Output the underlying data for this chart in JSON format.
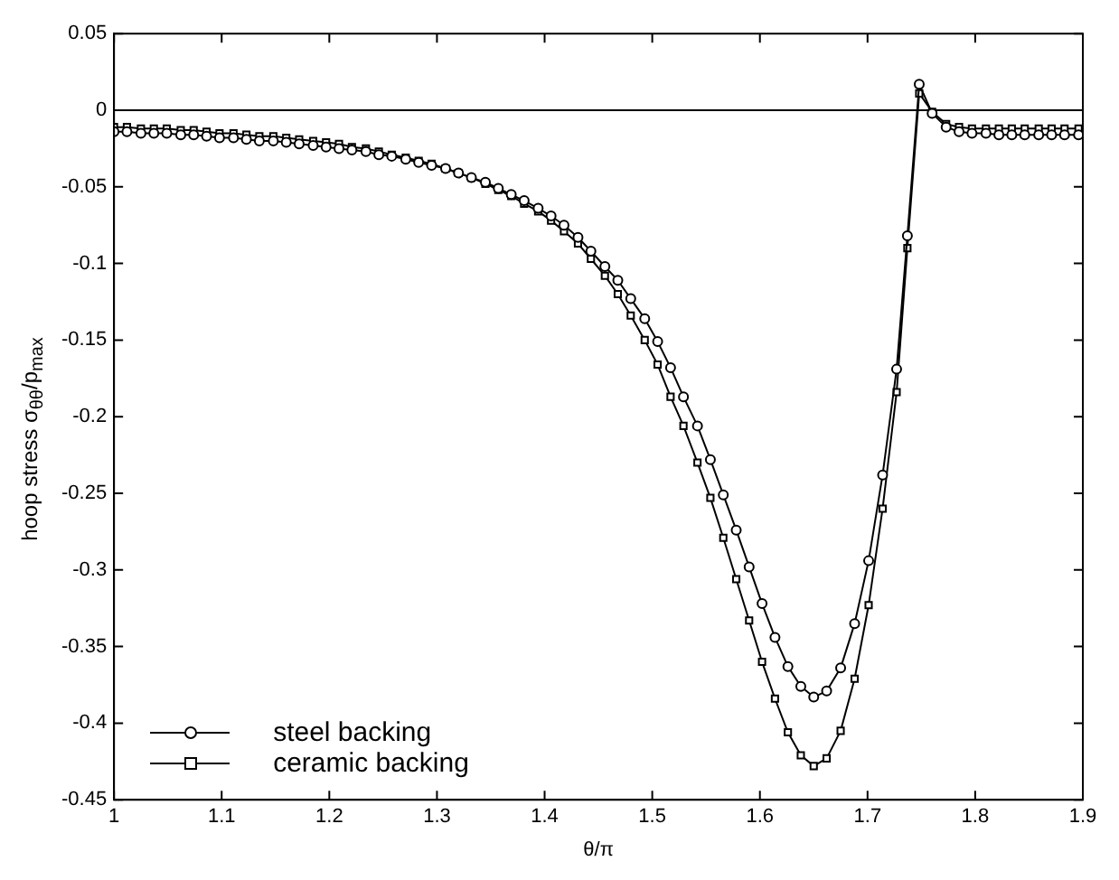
{
  "chart_data": {
    "type": "line",
    "xlabel": "θ/π",
    "ylabel": "hoop stress σ$_{θθ}$/p$_{max}$",
    "xlim": [
      1,
      1.9
    ],
    "xticks": [
      1,
      1.1,
      1.2,
      1.3,
      1.4,
      1.5,
      1.6,
      1.7,
      1.8,
      1.9
    ],
    "ylim": [
      -0.45,
      0.05
    ],
    "yticks": [
      -0.45,
      -0.4,
      -0.35,
      -0.3,
      -0.25,
      -0.2,
      -0.15,
      -0.1,
      -0.05,
      0,
      0.05
    ],
    "grid": false,
    "legend": "bottom left",
    "line_style": "solid",
    "ref_lines": [
      {
        "axis": "y",
        "value": 0,
        "color": "#000000"
      }
    ],
    "series": [
      {
        "name": "steel backing",
        "color": "#000000",
        "marker": "circle",
        "x": [
          1.0,
          1.012,
          1.025,
          1.037,
          1.049,
          1.062,
          1.074,
          1.086,
          1.098,
          1.111,
          1.123,
          1.135,
          1.148,
          1.16,
          1.172,
          1.185,
          1.197,
          1.209,
          1.221,
          1.234,
          1.246,
          1.258,
          1.271,
          1.283,
          1.295,
          1.308,
          1.32,
          1.332,
          1.345,
          1.357,
          1.369,
          1.381,
          1.394,
          1.406,
          1.418,
          1.431,
          1.443,
          1.456,
          1.468,
          1.48,
          1.493,
          1.505,
          1.517,
          1.529,
          1.542,
          1.554,
          1.566,
          1.578,
          1.59,
          1.602,
          1.614,
          1.626,
          1.638,
          1.65,
          1.662,
          1.675,
          1.688,
          1.701,
          1.714,
          1.727,
          1.737,
          1.748,
          1.76,
          1.773,
          1.785,
          1.797,
          1.81,
          1.822,
          1.834,
          1.846,
          1.859,
          1.871,
          1.883,
          1.896
        ],
        "values": [
          -0.014,
          -0.014,
          -0.015,
          -0.015,
          -0.015,
          -0.016,
          -0.016,
          -0.017,
          -0.018,
          -0.018,
          -0.019,
          -0.02,
          -0.02,
          -0.021,
          -0.022,
          -0.023,
          -0.024,
          -0.025,
          -0.026,
          -0.027,
          -0.029,
          -0.03,
          -0.032,
          -0.034,
          -0.036,
          -0.038,
          -0.041,
          -0.044,
          -0.047,
          -0.051,
          -0.055,
          -0.059,
          -0.064,
          -0.069,
          -0.075,
          -0.083,
          -0.092,
          -0.102,
          -0.111,
          -0.123,
          -0.136,
          -0.151,
          -0.168,
          -0.187,
          -0.206,
          -0.228,
          -0.251,
          -0.274,
          -0.298,
          -0.322,
          -0.344,
          -0.363,
          -0.376,
          -0.383,
          -0.379,
          -0.364,
          -0.335,
          -0.294,
          -0.238,
          -0.169,
          -0.082,
          0.017,
          -0.002,
          -0.011,
          -0.014,
          -0.015,
          -0.015,
          -0.016,
          -0.016,
          -0.016,
          -0.016,
          -0.016,
          -0.016,
          -0.016
        ]
      },
      {
        "name": "ceramic backing",
        "color": "#000000",
        "marker": "square",
        "x": [
          1.0,
          1.012,
          1.025,
          1.037,
          1.049,
          1.062,
          1.074,
          1.086,
          1.098,
          1.111,
          1.123,
          1.135,
          1.148,
          1.16,
          1.172,
          1.185,
          1.197,
          1.209,
          1.221,
          1.234,
          1.246,
          1.258,
          1.271,
          1.283,
          1.295,
          1.308,
          1.32,
          1.332,
          1.345,
          1.357,
          1.369,
          1.381,
          1.394,
          1.406,
          1.418,
          1.431,
          1.443,
          1.456,
          1.468,
          1.48,
          1.493,
          1.505,
          1.517,
          1.529,
          1.542,
          1.554,
          1.566,
          1.578,
          1.59,
          1.602,
          1.614,
          1.626,
          1.638,
          1.65,
          1.662,
          1.675,
          1.688,
          1.701,
          1.714,
          1.727,
          1.737,
          1.748,
          1.76,
          1.773,
          1.785,
          1.797,
          1.81,
          1.822,
          1.834,
          1.846,
          1.859,
          1.871,
          1.883,
          1.896
        ],
        "values": [
          -0.011,
          -0.011,
          -0.012,
          -0.012,
          -0.012,
          -0.013,
          -0.013,
          -0.014,
          -0.015,
          -0.015,
          -0.016,
          -0.017,
          -0.017,
          -0.018,
          -0.019,
          -0.02,
          -0.021,
          -0.022,
          -0.024,
          -0.025,
          -0.027,
          -0.029,
          -0.031,
          -0.033,
          -0.035,
          -0.038,
          -0.041,
          -0.044,
          -0.048,
          -0.052,
          -0.056,
          -0.061,
          -0.066,
          -0.072,
          -0.079,
          -0.087,
          -0.097,
          -0.108,
          -0.12,
          -0.134,
          -0.15,
          -0.166,
          -0.187,
          -0.206,
          -0.23,
          -0.253,
          -0.279,
          -0.306,
          -0.333,
          -0.36,
          -0.384,
          -0.406,
          -0.421,
          -0.428,
          -0.423,
          -0.405,
          -0.371,
          -0.323,
          -0.26,
          -0.184,
          -0.09,
          0.011,
          -0.001,
          -0.009,
          -0.011,
          -0.012,
          -0.012,
          -0.012,
          -0.012,
          -0.012,
          -0.012,
          -0.012,
          -0.012,
          -0.012
        ]
      }
    ]
  }
}
